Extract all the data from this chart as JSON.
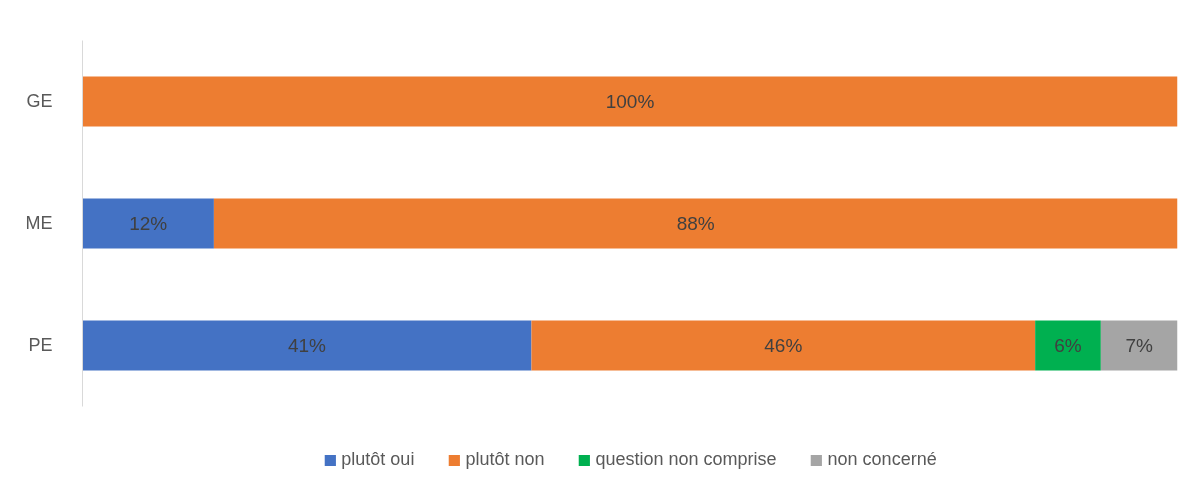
{
  "chart_data": {
    "type": "bar",
    "orientation": "horizontal",
    "stacked": true,
    "categories": [
      "GE",
      "ME",
      "PE"
    ],
    "series": [
      {
        "name": "plutôt oui",
        "color": "#4472c4",
        "values": [
          null,
          12,
          41
        ],
        "value_labels": [
          null,
          "12%",
          "41%"
        ]
      },
      {
        "name": "plutôt non",
        "color": "#ed7d31",
        "values": [
          100,
          88,
          46
        ],
        "value_labels": [
          "100%",
          "88%",
          "46%"
        ]
      },
      {
        "name": "question non comprise",
        "color": "#00b050",
        "values": [
          null,
          null,
          6
        ],
        "value_labels": [
          null,
          null,
          "6%"
        ]
      },
      {
        "name": "non concerné",
        "color": "#a5a5a5",
        "values": [
          null,
          null,
          7
        ],
        "value_labels": [
          null,
          null,
          "7%"
        ]
      }
    ],
    "xlim": [
      0,
      100
    ],
    "tick_labels": "y",
    "grid": false,
    "legend": "bottom"
  }
}
